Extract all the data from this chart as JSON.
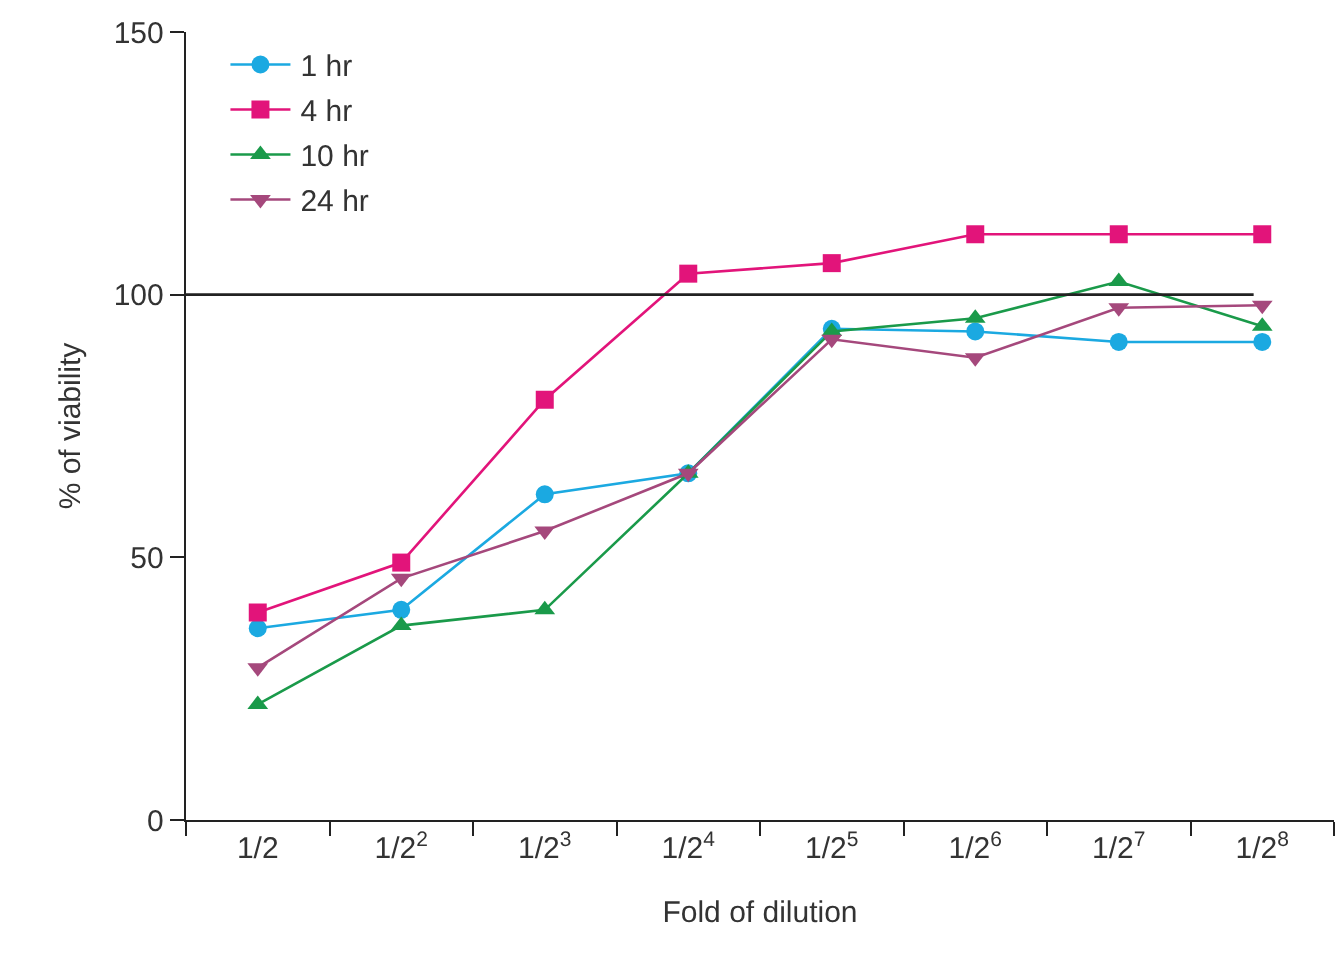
{
  "chart_data": {
    "type": "line",
    "xlabel": "Fold of dilution",
    "ylabel": "% of viability",
    "categories": [
      "1/2",
      "1/2$^{2}$",
      "1/2$^{3}$",
      "1/2$^{4}$",
      "1/2$^{5}$",
      "1/2$^{6}$",
      "1/2$^{7}$",
      "1/2$^{8}$"
    ],
    "series": [
      {
        "name": "1 hr",
        "color": "#1ba9e1",
        "marker": "circle",
        "values": [
          36.5,
          40,
          62,
          66,
          93.5,
          93,
          91,
          91
        ]
      },
      {
        "name": "4 hr",
        "color": "#e2147a",
        "marker": "square",
        "values": [
          39.5,
          49,
          80,
          104,
          106,
          111.5,
          111.5,
          111.5
        ]
      },
      {
        "name": "10 hr",
        "color": "#1a9a4a",
        "marker": "triangle",
        "values": [
          22,
          37,
          40,
          66,
          93,
          95.5,
          102.5,
          94
        ]
      },
      {
        "name": "24 hr",
        "color": "#a5487c",
        "marker": "triangle-down",
        "values": [
          29,
          46,
          55,
          66,
          91.5,
          88,
          97.5,
          98
        ]
      }
    ],
    "ylim": [
      0,
      150
    ],
    "yticks": [
      0,
      50,
      100,
      150
    ],
    "ref_lines": [
      {
        "axis": "y",
        "value": 100,
        "color": "#222222"
      }
    ],
    "legend": "top left",
    "grid": false
  }
}
